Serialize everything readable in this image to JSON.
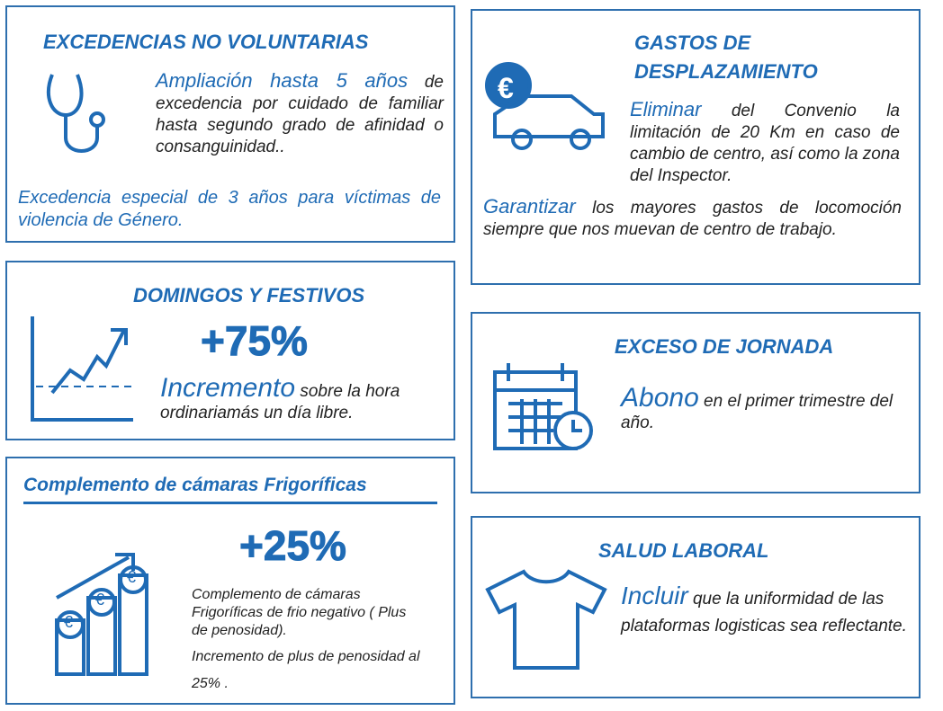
{
  "currency_symbol": "€",
  "panels": [
    {
      "title": "EXCEDENCIAS NO VOLUNTARIAS",
      "items": [
        {
          "highlight": "Ampliación  hasta 5 años",
          "text": "de excedencia por cuidado de familiar hasta segundo grado de afinidad o consanguinidad.."
        },
        {
          "highlight": "Excedencia especial de 3 años para víctimas de violencia de Género."
        }
      ]
    },
    {
      "title": "GASTOS DE DESPLAZAMIENTO",
      "items": [
        {
          "highlight": "Eliminar",
          "text": "del Convenio la limitación de 20 Km en caso de cambio de centro, así como la zona del Inspector."
        },
        {
          "highlight": "Garantizar",
          "text": "los mayores gastos de locomoción siempre que nos muevan de centro de trabajo."
        }
      ]
    },
    {
      "title": "DOMINGOS Y FESTIVOS",
      "big": "+75%",
      "items": [
        {
          "highlight": "Incremento",
          "text": "sobre la hora ordinariamás un día libre."
        }
      ]
    },
    {
      "title": "EXCESO DE JORNADA",
      "items": [
        {
          "highlight": "Abono",
          "text": "en el primer trimestre del año."
        }
      ]
    },
    {
      "title": "Complemento de  cámaras  Frigoríficas",
      "big": "+25%",
      "items": [
        {
          "text": "Complemento de cámaras Frigoríficas de frio negativo ( Plus de penosidad)."
        },
        {
          "text": "Incremento de plus de penosidad al 25% ."
        }
      ]
    },
    {
      "title": "SALUD LABORAL",
      "items": [
        {
          "highlight": "Incluir",
          "text": "que la uniformidad de las plataformas logisticas sea reflectante."
        }
      ]
    }
  ]
}
